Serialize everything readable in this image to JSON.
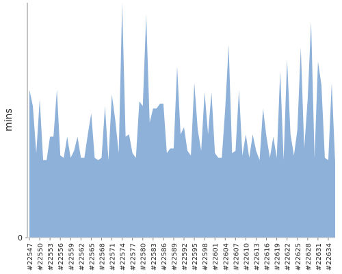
{
  "chart_data": {
    "type": "area",
    "y_label": "mins",
    "categories": [
      "#22547",
      null,
      null,
      "#22550",
      null,
      null,
      "#22553",
      null,
      null,
      "#22556",
      null,
      null,
      "#22559",
      null,
      null,
      "#22562",
      null,
      null,
      "#22565",
      null,
      null,
      "#22568",
      null,
      null,
      "#22571",
      null,
      null,
      "#22574",
      null,
      null,
      "#22577",
      null,
      null,
      "#22580",
      null,
      null,
      "#22583",
      null,
      null,
      "#22586",
      null,
      null,
      "#22589",
      null,
      null,
      "#22592",
      null,
      null,
      "#22595",
      null,
      null,
      "#22598",
      null,
      null,
      "#22601",
      null,
      null,
      "#22604",
      null,
      null,
      "#22607",
      null,
      null,
      "#22610",
      null,
      null,
      "#22613",
      null,
      null,
      "#22616",
      null,
      null,
      "#22619",
      null,
      null,
      "#22622",
      null,
      null,
      "#22625",
      null,
      null,
      "#22628",
      null,
      null,
      "#22631",
      null,
      null,
      "#22634",
      null,
      null
    ],
    "values": [
      63,
      56,
      36,
      59,
      33,
      33,
      43,
      43,
      63,
      35,
      34,
      43,
      34,
      37,
      43,
      34,
      34,
      44,
      53,
      34,
      33,
      34,
      56,
      33,
      61,
      50,
      36,
      100,
      43,
      44,
      36,
      34,
      58,
      56,
      95,
      49,
      55,
      55,
      57,
      57,
      36,
      38,
      38,
      73,
      44,
      47,
      37,
      35,
      66,
      46,
      37,
      62,
      44,
      62,
      36,
      34,
      34,
      55,
      82,
      36,
      37,
      63,
      35,
      44,
      34,
      44,
      37,
      33,
      55,
      43,
      34,
      43,
      34,
      71,
      33,
      76,
      44,
      35,
      46,
      81,
      38,
      59,
      92,
      34,
      75,
      65,
      34,
      33,
      66,
      32
    ],
    "color": "#8eb1d9",
    "ylim": [
      0,
      100
    ],
    "yticks": [
      0
    ]
  }
}
